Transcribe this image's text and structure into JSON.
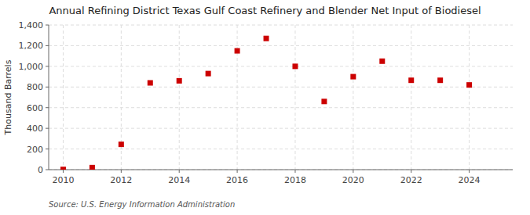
{
  "chart_data": {
    "type": "scatter",
    "title": "Annual Refining District Texas Gulf Coast Refinery and Blender Net Input of Biodiesel",
    "y_label": "Thousand Barrels",
    "source": "Source: U.S. Energy Information Administration",
    "x": [
      2010,
      2011,
      2012,
      2013,
      2014,
      2015,
      2016,
      2017,
      2018,
      2019,
      2020,
      2021,
      2022,
      2023,
      2024
    ],
    "values": [
      2,
      20,
      245,
      840,
      860,
      930,
      1150,
      1270,
      1000,
      660,
      900,
      1050,
      865,
      865,
      820
    ],
    "color": "#cc0000",
    "marker": "square",
    "xlim": [
      2009.5,
      2025.5
    ],
    "ylim": [
      0,
      1400
    ],
    "xticks": [
      2010,
      2012,
      2014,
      2016,
      2018,
      2020,
      2022,
      2024
    ],
    "yticks": [
      0,
      200,
      400,
      600,
      800,
      {
        "value": 1000,
        "label": "1,000"
      },
      {
        "value": 1200,
        "label": "1,200"
      },
      {
        "value": 1400,
        "label": "1,400"
      }
    ],
    "grid": true
  }
}
